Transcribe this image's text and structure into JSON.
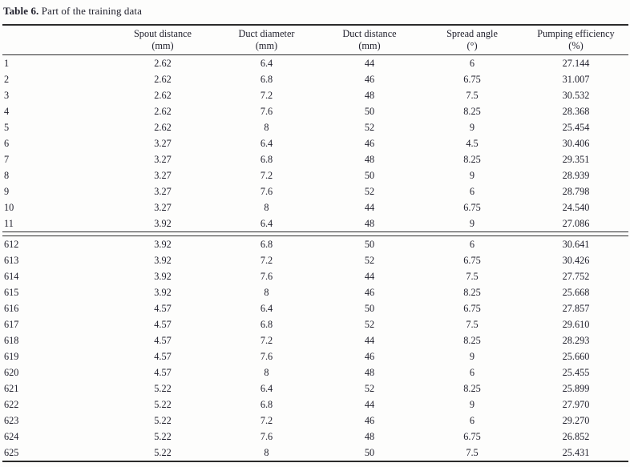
{
  "caption": {
    "label": "Table 6.",
    "text": " Part of the training data"
  },
  "table": {
    "columns": [
      {
        "name": "",
        "unit": ""
      },
      {
        "name": "Spout distance",
        "unit": "(mm)"
      },
      {
        "name": "Duct diameter",
        "unit": "(mm)"
      },
      {
        "name": "Duct distance",
        "unit": "(mm)"
      },
      {
        "name": "Spread angle",
        "unit": "(°)"
      },
      {
        "name": "Pumping efficiency",
        "unit": "(%)"
      }
    ],
    "block1": [
      [
        "1",
        "2.62",
        "6.4",
        "44",
        "6",
        "27.144"
      ],
      [
        "2",
        "2.62",
        "6.8",
        "46",
        "6.75",
        "31.007"
      ],
      [
        "3",
        "2.62",
        "7.2",
        "48",
        "7.5",
        "30.532"
      ],
      [
        "4",
        "2.62",
        "7.6",
        "50",
        "8.25",
        "28.368"
      ],
      [
        "5",
        "2.62",
        "8",
        "52",
        "9",
        "25.454"
      ],
      [
        "6",
        "3.27",
        "6.4",
        "46",
        "4.5",
        "30.406"
      ],
      [
        "7",
        "3.27",
        "6.8",
        "48",
        "8.25",
        "29.351"
      ],
      [
        "8",
        "3.27",
        "7.2",
        "50",
        "9",
        "28.939"
      ],
      [
        "9",
        "3.27",
        "7.6",
        "52",
        "6",
        "28.798"
      ],
      [
        "10",
        "3.27",
        "8",
        "44",
        "6.75",
        "24.540"
      ],
      [
        "11",
        "3.92",
        "6.4",
        "48",
        "9",
        "27.086"
      ]
    ],
    "block2": [
      [
        "612",
        "3.92",
        "6.8",
        "50",
        "6",
        "30.641"
      ],
      [
        "613",
        "3.92",
        "7.2",
        "52",
        "6.75",
        "30.426"
      ],
      [
        "614",
        "3.92",
        "7.6",
        "44",
        "7.5",
        "27.752"
      ],
      [
        "615",
        "3.92",
        "8",
        "46",
        "8.25",
        "25.668"
      ],
      [
        "616",
        "4.57",
        "6.4",
        "50",
        "6.75",
        "27.857"
      ],
      [
        "617",
        "4.57",
        "6.8",
        "52",
        "7.5",
        "29.610"
      ],
      [
        "618",
        "4.57",
        "7.2",
        "44",
        "8.25",
        "28.293"
      ],
      [
        "619",
        "4.57",
        "7.6",
        "46",
        "9",
        "25.660"
      ],
      [
        "620",
        "4.57",
        "8",
        "48",
        "6",
        "25.455"
      ],
      [
        "621",
        "5.22",
        "6.4",
        "52",
        "8.25",
        "25.899"
      ],
      [
        "622",
        "5.22",
        "6.8",
        "44",
        "9",
        "27.970"
      ],
      [
        "623",
        "5.22",
        "7.2",
        "46",
        "6",
        "29.270"
      ],
      [
        "624",
        "5.22",
        "7.6",
        "48",
        "6.75",
        "26.852"
      ],
      [
        "625",
        "5.22",
        "8",
        "50",
        "7.5",
        "25.431"
      ]
    ]
  }
}
